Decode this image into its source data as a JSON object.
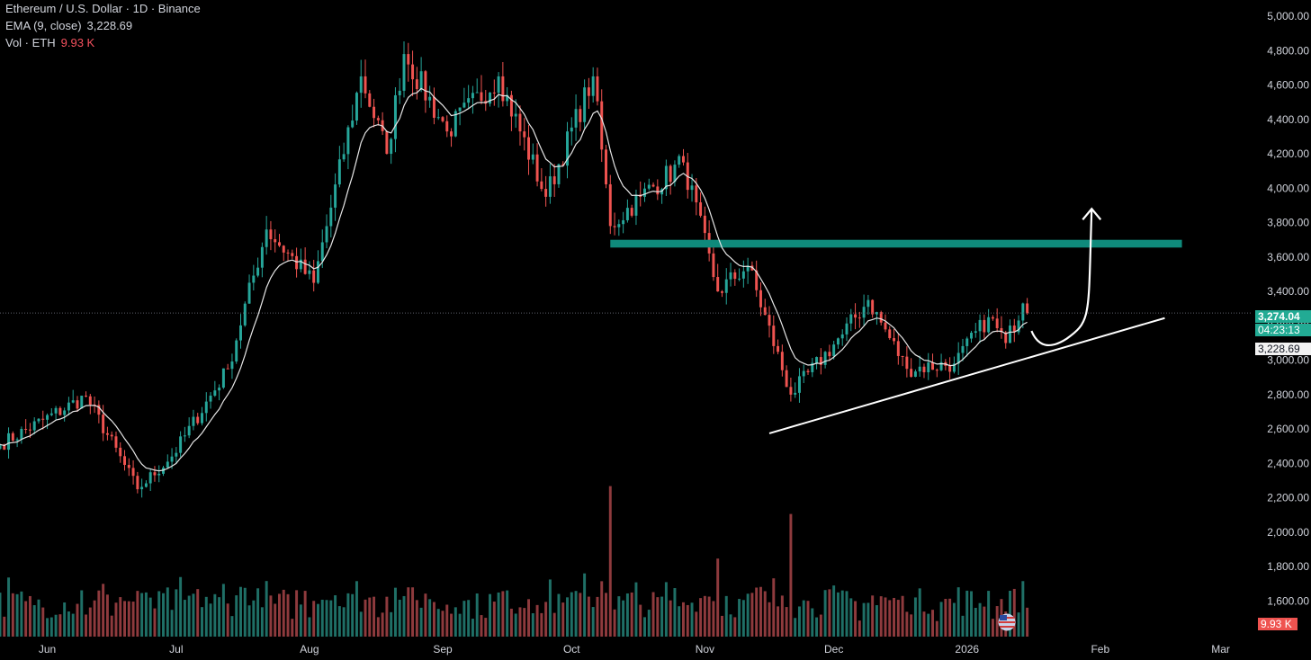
{
  "legend": {
    "symbol": "Ethereum / U.S. Dollar · 1D · Binance",
    "ema_label": "EMA (9, close)",
    "ema_value": "3,228.69",
    "vol_label": "Vol · ETH",
    "vol_value": "9.93 K"
  },
  "price_tags": {
    "last": "3,274.04",
    "countdown": "04:23:13",
    "ema": "3,228.69",
    "volume": "9.93 K"
  },
  "colors": {
    "up": "#26a69a",
    "down": "#ef5350",
    "zone": "#0f8a7b",
    "ema": "#e6e6e6"
  },
  "chart_data": {
    "type": "candlestick",
    "ylim": [
      1550,
      5000
    ],
    "y_ticks": [
      "5,000.00",
      "4,800.00",
      "4,600.00",
      "4,400.00",
      "4,200.00",
      "4,000.00",
      "3,800.00",
      "3,600.00",
      "3,400.00",
      "3,200.00",
      "3,000.00",
      "2,800.00",
      "2,600.00",
      "2,400.00",
      "2,200.00",
      "2,000.00",
      "1,800.00",
      "1,600.00"
    ],
    "y_tick_values": [
      5000,
      4800,
      4600,
      4400,
      4200,
      4000,
      3800,
      3600,
      3400,
      3200,
      3000,
      2800,
      2600,
      2400,
      2200,
      2000,
      1800,
      1600
    ],
    "x_ticks": [
      "Jun",
      "Jul",
      "Aug",
      "Sep",
      "Oct",
      "Nov",
      "Dec",
      "2026",
      "Feb",
      "Mar"
    ],
    "x_tick_dates": [
      "2025-06-01",
      "2025-07-01",
      "2025-08-01",
      "2025-09-01",
      "2025-10-01",
      "2025-11-01",
      "2025-12-01",
      "2026-01-01",
      "2026-02-01",
      "2026-03-01"
    ],
    "x_range": [
      "2025-05-21",
      "2026-03-08"
    ],
    "grid": false,
    "last_price": 3274.04,
    "current_date": "2026-01-15",
    "resistance_zone": {
      "from": 3655,
      "to": 3700,
      "start": "2025-10-10",
      "end": "2026-02-20"
    },
    "trendline": {
      "start": {
        "date": "2025-11-16",
        "price": 2575
      },
      "end": {
        "date": "2026-02-16",
        "price": 3245
      }
    },
    "projection": {
      "start": {
        "date": "2026-01-16",
        "price": 3170
      },
      "low": {
        "date": "2026-01-20",
        "price": 3125
      },
      "end": {
        "date": "2026-01-30",
        "price": 3880
      }
    },
    "anchors": [
      {
        "date": "2025-05-21",
        "price": 2510
      },
      {
        "date": "2025-06-10",
        "price": 2790
      },
      {
        "date": "2025-06-22",
        "price": 2250
      },
      {
        "date": "2025-06-30",
        "price": 2440
      },
      {
        "date": "2025-07-13",
        "price": 2950
      },
      {
        "date": "2025-07-22",
        "price": 3760
      },
      {
        "date": "2025-08-02",
        "price": 3450
      },
      {
        "date": "2025-08-13",
        "price": 4650
      },
      {
        "date": "2025-08-19",
        "price": 4200
      },
      {
        "date": "2025-08-23",
        "price": 4780
      },
      {
        "date": "2025-09-02",
        "price": 4330
      },
      {
        "date": "2025-09-14",
        "price": 4650
      },
      {
        "date": "2025-09-25",
        "price": 3950
      },
      {
        "date": "2025-10-06",
        "price": 4650
      },
      {
        "date": "2025-10-10",
        "price": 3780
      },
      {
        "date": "2025-10-17",
        "price": 3950
      },
      {
        "date": "2025-10-27",
        "price": 4150
      },
      {
        "date": "2025-11-04",
        "price": 3400
      },
      {
        "date": "2025-11-11",
        "price": 3550
      },
      {
        "date": "2025-11-21",
        "price": 2800
      },
      {
        "date": "2025-12-03",
        "price": 3150
      },
      {
        "date": "2025-12-09",
        "price": 3350
      },
      {
        "date": "2025-12-18",
        "price": 2950
      },
      {
        "date": "2025-12-29",
        "price": 2980
      },
      {
        "date": "2026-01-06",
        "price": 3250
      },
      {
        "date": "2026-01-10",
        "price": 3100
      },
      {
        "date": "2026-01-14",
        "price": 3330
      },
      {
        "date": "2026-01-15",
        "price": 3274
      }
    ],
    "volume_spikes": [
      {
        "date": "2025-10-10",
        "value": 2.7
      },
      {
        "date": "2025-11-21",
        "value": 2.2
      },
      {
        "date": "2025-11-04",
        "value": 1.4
      }
    ]
  }
}
